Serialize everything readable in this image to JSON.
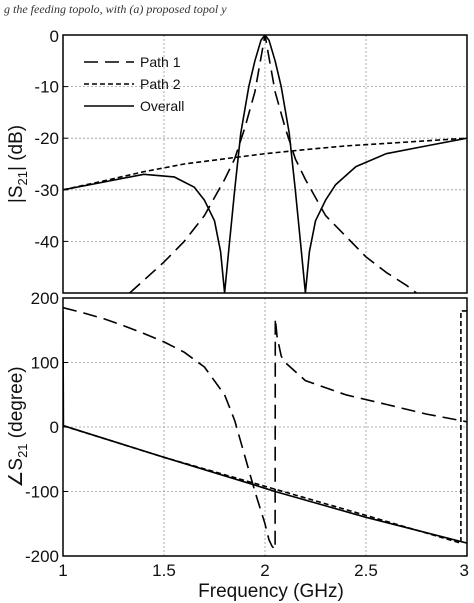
{
  "caption": "g the feeding topolo, with (a) proposed topol    y",
  "chart_data": [
    {
      "type": "line",
      "panel": "top",
      "ylabel_main": "|S",
      "ylabel_sub": "21",
      "ylabel_tail": "| (dB)",
      "xlim": [
        1,
        3
      ],
      "ylim": [
        -50,
        0
      ],
      "yticks": [
        "0",
        "-10",
        "-20",
        "-30",
        "-40"
      ],
      "ytick_values": [
        0,
        -10,
        -20,
        -30,
        -40
      ],
      "grid": true,
      "legend": "top-left",
      "series": [
        {
          "name": "Path 1",
          "style": "long-dash",
          "x": [
            1.33,
            1.5,
            1.6,
            1.7,
            1.8,
            1.85,
            1.9,
            1.95,
            2.0,
            2.05,
            2.1,
            2.15,
            2.2,
            2.3,
            2.4,
            2.5,
            2.6,
            2.7,
            2.75
          ],
          "y": [
            -50,
            -44,
            -40,
            -35,
            -28,
            -24,
            -18,
            -11,
            0,
            -11,
            -18,
            -24,
            -28,
            -35,
            -39,
            -43,
            -46,
            -48.5,
            -50
          ]
        },
        {
          "name": "Path 2",
          "style": "short-dash",
          "x": [
            1.0,
            1.2,
            1.4,
            1.6,
            1.8,
            2.0,
            2.2,
            2.4,
            2.6,
            2.8,
            3.0
          ],
          "y": [
            -30,
            -28.3,
            -26.5,
            -25,
            -24,
            -23,
            -22.2,
            -21.5,
            -21,
            -20.5,
            -20
          ]
        },
        {
          "name": "Overall",
          "style": "solid",
          "x": [
            1.0,
            1.2,
            1.4,
            1.55,
            1.65,
            1.7,
            1.75,
            1.78,
            1.8,
            1.82,
            1.85,
            1.88,
            1.92,
            1.95,
            1.98,
            2.0,
            2.02,
            2.05,
            2.08,
            2.12,
            2.15,
            2.18,
            2.2,
            2.22,
            2.25,
            2.3,
            2.35,
            2.45,
            2.6,
            2.8,
            3.0
          ],
          "y": [
            -30,
            -28.5,
            -27,
            -27.5,
            -29.5,
            -32,
            -36,
            -42,
            -50,
            -42,
            -30,
            -19,
            -10,
            -5,
            -1,
            0,
            -1,
            -5,
            -10,
            -19,
            -30,
            -42,
            -50,
            -42,
            -36,
            -32,
            -29,
            -25.5,
            -23,
            -21.5,
            -20
          ]
        }
      ]
    },
    {
      "type": "line",
      "panel": "bottom",
      "ylabel_main": "∠S",
      "ylabel_sub": "21",
      "ylabel_tail": " (degree)",
      "xlabel": "Frequency (GHz)",
      "xlim": [
        1,
        3
      ],
      "ylim": [
        -200,
        200
      ],
      "xticks": [
        "1",
        "1.5",
        "2",
        "2.5",
        "3"
      ],
      "xtick_values": [
        1,
        1.5,
        2,
        2.5,
        3
      ],
      "yticks": [
        "200",
        "100",
        "0",
        "-100",
        "-200"
      ],
      "ytick_values": [
        200,
        100,
        0,
        -100,
        -200
      ],
      "grid": true,
      "series": [
        {
          "name": "Path 1",
          "style": "long-dash",
          "x": [
            1.0,
            1.1,
            1.2,
            1.3,
            1.4,
            1.5,
            1.6,
            1.7,
            1.8,
            1.85,
            1.9,
            1.95,
            2.0,
            2.02,
            2.035,
            2.05,
            2.051,
            2.06,
            2.08,
            2.1,
            2.2,
            2.4,
            2.6,
            2.8,
            3.0
          ],
          "y": [
            185,
            177,
            168,
            157,
            145,
            132,
            116,
            93,
            50,
            10,
            -45,
            -100,
            -150,
            -175,
            -185,
            -190,
            168,
            140,
            110,
            100,
            72,
            50,
            35,
            20,
            8
          ]
        },
        {
          "name": "Path 2",
          "style": "short-dash",
          "x": [
            1.0,
            1.5,
            2.0,
            2.5,
            2.97,
            2.97,
            3.0
          ],
          "y": [
            2,
            -47,
            -92,
            -137,
            -180,
            180,
            180
          ]
        },
        {
          "name": "Overall",
          "style": "solid",
          "x": [
            1.0,
            1.002,
            1.5,
            1.95,
            2.0,
            2.05,
            2.5,
            3.0
          ],
          "y": [
            180,
            2,
            -47,
            -90,
            -95,
            -100,
            -140,
            -180
          ]
        }
      ]
    }
  ]
}
